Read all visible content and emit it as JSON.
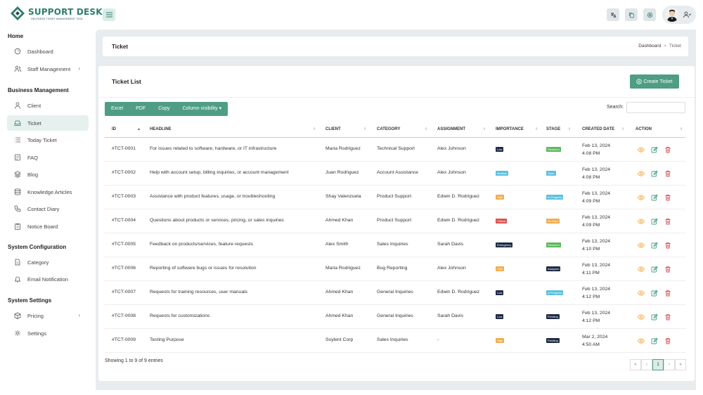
{
  "brand": {
    "title": "SUPPORT DESK",
    "subtitle": "HELPDESK TICKET MANAGEMENT TOOL",
    "color": "#2e7d6b"
  },
  "header": {
    "icons": [
      "translate-icon",
      "copy-icon",
      "settings-icon",
      "user-switch-icon"
    ]
  },
  "sidebar": {
    "sections": [
      {
        "title": "Home",
        "items": [
          {
            "label": "Dashboard",
            "icon": "speedometer-icon"
          },
          {
            "label": "Staff Management",
            "icon": "users-icon",
            "has_sub": true
          }
        ]
      },
      {
        "title": "Business Management",
        "items": [
          {
            "label": "Client",
            "icon": "user-icon"
          },
          {
            "label": "Ticket",
            "icon": "inbox-icon",
            "active": true
          },
          {
            "label": "Today Ticket",
            "icon": "list-icon"
          },
          {
            "label": "FAQ",
            "icon": "document-icon"
          },
          {
            "label": "Blog",
            "icon": "layers-icon"
          },
          {
            "label": "Knowledge Articles",
            "icon": "database-icon"
          },
          {
            "label": "Contact Diary",
            "icon": "phone-icon"
          },
          {
            "label": "Notice Board",
            "icon": "clipboard-icon"
          }
        ]
      },
      {
        "title": "System Configuration",
        "items": [
          {
            "label": "Category",
            "icon": "file-icon"
          },
          {
            "label": "Email Notification",
            "icon": "bell-icon"
          }
        ]
      },
      {
        "title": "System Settings",
        "items": [
          {
            "label": "Pricing",
            "icon": "box-icon",
            "has_sub": true
          },
          {
            "label": "Settings",
            "icon": "gear-icon"
          }
        ]
      }
    ]
  },
  "breadcrumb": {
    "title": "Ticket",
    "trail": [
      "Dashboard",
      "Ticket"
    ]
  },
  "ticket_list": {
    "title": "Ticket List",
    "create_label": "Create Ticket",
    "export_buttons": [
      "Excel",
      "PDF",
      "Copy",
      "Column visibility"
    ],
    "search_label": "Search:",
    "search_value": "",
    "columns": [
      "ID",
      "HEADLINE",
      "CLIENT",
      "CATEGORY",
      "ASSIGNMENT",
      "IMPORTANCE",
      "STAGE",
      "CREATED DATE",
      "ACTION"
    ],
    "rows": [
      {
        "id": "#TCT-0001",
        "headline": "For issues related to software, hardware, or IT infrastructure",
        "client": "Maria Rodriguez",
        "category": "Technical Support",
        "assignment": "Alex Johnson",
        "importance": "Low",
        "stage": "Resolved",
        "date": "Feb 13, 2024",
        "time": "4:08 PM"
      },
      {
        "id": "#TCT-0002",
        "headline": "Help with account setup, billing inquiries, or account management",
        "client": "Juan Rodriguez",
        "category": "Account Assistance",
        "assignment": "Alex Johnson",
        "importance": "Medium",
        "stage": "Open",
        "date": "Feb 13, 2024",
        "time": "4:08 PM"
      },
      {
        "id": "#TCT-0003",
        "headline": "Assistance with product features, usage, or troubleshooting",
        "client": "Shay Valenzuela",
        "category": "Product Support",
        "assignment": "Edwin D. Rodriguez",
        "importance": "High",
        "stage": "In Progress",
        "date": "Feb 13, 2024",
        "time": "4:09 PM"
      },
      {
        "id": "#TCT-0004",
        "headline": "Questions about products or services, pricing, or sales inquiries",
        "client": "Ahmed Khan",
        "category": "Product Support",
        "assignment": "Edwin D. Rodriguez",
        "importance": "Critical",
        "stage": "On Hold",
        "date": "Feb 13, 2024",
        "time": "4:09 PM"
      },
      {
        "id": "#TCT-0005",
        "headline": "Feedback on products/services, feature requests",
        "client": "Alex Smith",
        "category": "Sales Inquiries",
        "assignment": "Sarah Davis",
        "importance": "Emergency",
        "stage": "Resolved",
        "date": "Feb 13, 2024",
        "time": "4:10 PM"
      },
      {
        "id": "#TCT-0006",
        "headline": "Reporting of software bugs or issues for resolution",
        "client": "Maria Rodriguez",
        "category": "Bug Reporting",
        "assignment": "Alex Johnson",
        "importance": "High",
        "stage": "Assigned",
        "date": "Feb 13, 2024",
        "time": "4:11 PM"
      },
      {
        "id": "#TCT-0007",
        "headline": "Requests for training resources, user manuals",
        "client": "Ahmed Khan",
        "category": "General Inquiries",
        "assignment": "Edwin D. Rodriguez",
        "importance": "Low",
        "stage": "In Progress",
        "date": "Feb 13, 2024",
        "time": "4:12 PM"
      },
      {
        "id": "#TCT-0008",
        "headline": "Requests for customizations",
        "client": "Ahmed Khan",
        "category": "General Inquiries",
        "assignment": "Sarah Davis",
        "importance": "Low",
        "stage": "Pending",
        "date": "Feb 13, 2024",
        "time": "4:12 PM"
      },
      {
        "id": "#TCT-0009",
        "headline": "Testing Purpose",
        "client": "Soylent Corp",
        "category": "Sales Inquiries",
        "assignment": "-",
        "importance": "High",
        "stage": "Pending",
        "date": "Mar 2, 2024",
        "time": "4:50 AM"
      }
    ],
    "showing": "Showing 1 to 9 of 9 entries",
    "pagination": {
      "current_page": "1",
      "first": "«",
      "prev": "‹",
      "next": "›",
      "last": "»"
    }
  },
  "colors": {
    "accent": "#4e9d84",
    "Low": "#1f2a44",
    "Medium": "#5bc0de",
    "High": "#f0ad4e",
    "Critical": "#d9534f",
    "Emergency": "#1f2a44",
    "Resolved": "#5cb85c",
    "Open": "#5bc0de",
    "In Progress": "#5bc0de",
    "On Hold": "#f0ad4e",
    "Assigned": "#1f2a44",
    "Pending": "#1f2a44"
  }
}
